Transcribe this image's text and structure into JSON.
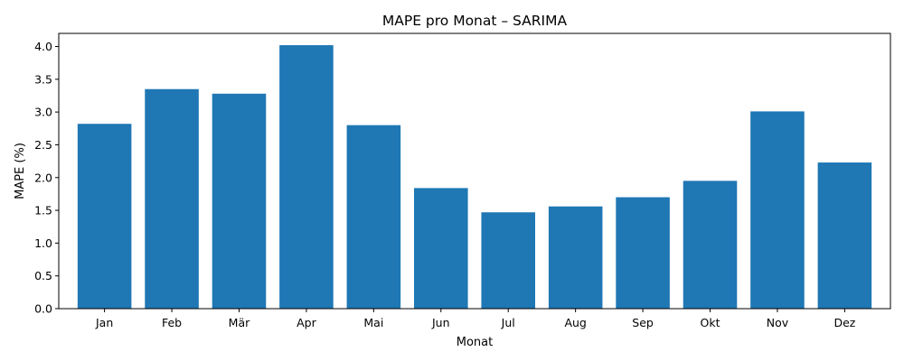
{
  "chart_data": {
    "type": "bar",
    "title": "MAPE pro Monat – SARIMA",
    "xlabel": "Monat",
    "ylabel": "MAPE (%)",
    "categories": [
      "Jan",
      "Feb",
      "Mär",
      "Apr",
      "Mai",
      "Jun",
      "Jul",
      "Aug",
      "Sep",
      "Okt",
      "Nov",
      "Dez"
    ],
    "values": [
      2.82,
      3.35,
      3.28,
      4.02,
      2.8,
      1.84,
      1.47,
      1.56,
      1.7,
      1.95,
      3.01,
      2.23
    ],
    "ylim": [
      0,
      4.2
    ],
    "yticks": [
      "0.0",
      "0.5",
      "1.0",
      "1.5",
      "2.0",
      "2.5",
      "3.0",
      "3.5",
      "4.0"
    ],
    "grid": false,
    "legend": "none",
    "bar_color": "#1f77b4"
  }
}
